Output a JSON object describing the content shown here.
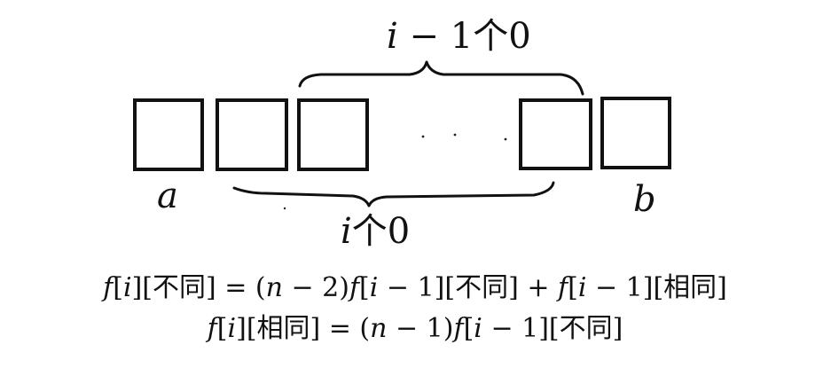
{
  "labels": {
    "top_brace_var": "i",
    "top_brace_rest": " − 1个0",
    "bottom_brace_var": "i",
    "bottom_brace_rest": "个0",
    "left_endpoint": "a",
    "right_endpoint": "b"
  },
  "formulas": {
    "line1": {
      "f1": "f",
      "p1": "[",
      "i1": "i",
      "p2": "][不同] = (",
      "n1": "n",
      "p3": " − 2)",
      "f2": "f",
      "p4": "[",
      "i2": "i",
      "p5": " − 1][不同] + ",
      "f3": "f",
      "p6": "[",
      "i3": "i",
      "p7": " − 1][相同]"
    },
    "line2": {
      "f1": "f",
      "p1": "[",
      "i1": "i",
      "p2": "][相同] = (",
      "n1": "n",
      "p3": " − 1)",
      "f2": "f",
      "p4": "[",
      "i2": "i",
      "p5": " − 1][不同]"
    }
  }
}
